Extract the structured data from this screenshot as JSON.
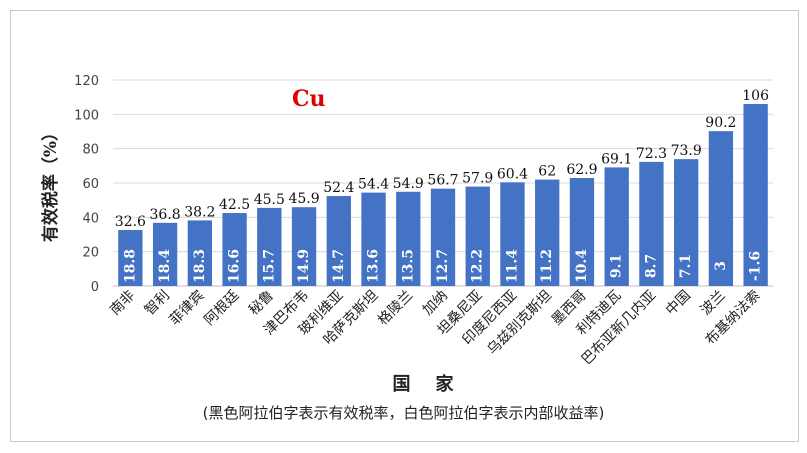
{
  "chart_data": {
    "type": "bar",
    "annotation": "Cu",
    "xlabel": "国    家",
    "ylabel": "有效税率（%）",
    "footnote": "(黑色阿拉伯字表示有效税率，白色阿拉伯字表示内部收益率)",
    "ylim": [
      0,
      120
    ],
    "yticks": [
      0,
      20,
      40,
      60,
      80,
      100,
      120
    ],
    "grid": true,
    "colors": {
      "bar": "#4472c4",
      "annotation": "#e00000",
      "grid": "#d9d9d9",
      "text": "#222222"
    },
    "categories": [
      "南非",
      "智利",
      "菲律宾",
      "阿根廷",
      "秘鲁",
      "津巴布韦",
      "玻利维亚",
      "哈萨克斯坦",
      "格陵兰",
      "加纳",
      "坦桑尼亚",
      "印度尼西亚",
      "乌兹别克斯坦",
      "墨西哥",
      "利特迪瓦",
      "巴布亚新几内亚",
      "中国",
      "波兰",
      "布基纳法索"
    ],
    "series": [
      {
        "values": [
          32.6,
          36.8,
          38.2,
          42.5,
          45.5,
          45.9,
          52.4,
          54.4,
          54.9,
          56.7,
          57.9,
          60.4,
          62,
          62.9,
          69.1,
          72.3,
          73.9,
          90.2,
          106
        ]
      },
      {
        "values": [
          18.8,
          18.4,
          18.3,
          16.6,
          15.7,
          14.9,
          14.7,
          13.6,
          13.5,
          12.7,
          12.2,
          11.4,
          11.2,
          10.4,
          9.1,
          8.7,
          7.1,
          3,
          -1.6
        ]
      }
    ]
  }
}
